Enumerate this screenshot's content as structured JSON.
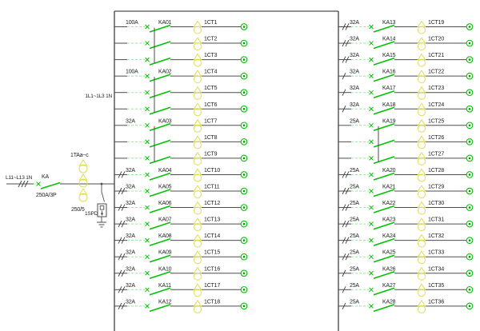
{
  "colors": {
    "wire": "#4d4d4d",
    "device_green": "#00c300",
    "pale_green": "#9fe49f",
    "coil_yellow": "#dede52",
    "terminal_dot": "#009900",
    "text": "#1c1c1c",
    "background": "#ffffff"
  },
  "incoming": {
    "line_label": "L11~L13 1N",
    "breaker_label": "KA",
    "breaker_rating": "250A/3P",
    "ct_group_label": "1TAa~c",
    "ct_ratio": "250/5",
    "spd_label": "1SPD"
  },
  "bus_label": "1L1~1L3 1N",
  "panels": [
    {
      "id": "left",
      "groups": [
        {
          "breaker": "KA01",
          "rating": "100A",
          "poles": 3,
          "slashes": 0,
          "circuits": [
            "1CT1",
            "1CT2",
            "1CT3"
          ]
        },
        {
          "breaker": "KA02",
          "rating": "100A",
          "poles": 3,
          "slashes": 0,
          "circuits": [
            "1CT4",
            "1CT5",
            "1CT6"
          ]
        },
        {
          "breaker": "KA03",
          "rating": "32A",
          "poles": 3,
          "slashes": 0,
          "circuits": [
            "1CT7",
            "1CT8",
            "1CT9"
          ]
        },
        {
          "breaker": "KA04",
          "rating": "32A",
          "poles": 1,
          "slashes": 2,
          "circuits": [
            "1CT10"
          ]
        },
        {
          "breaker": "KA05",
          "rating": "32A",
          "poles": 1,
          "slashes": 2,
          "circuits": [
            "1CT11"
          ]
        },
        {
          "breaker": "KA06",
          "rating": "32A",
          "poles": 1,
          "slashes": 2,
          "circuits": [
            "1CT12"
          ]
        },
        {
          "breaker": "KA07",
          "rating": "32A",
          "poles": 1,
          "slashes": 2,
          "circuits": [
            "1CT13"
          ]
        },
        {
          "breaker": "KA08",
          "rating": "32A",
          "poles": 1,
          "slashes": 2,
          "circuits": [
            "1CT14"
          ]
        },
        {
          "breaker": "KA09",
          "rating": "32A",
          "poles": 1,
          "slashes": 2,
          "circuits": [
            "1CT15"
          ]
        },
        {
          "breaker": "KA10",
          "rating": "32A",
          "poles": 1,
          "slashes": 2,
          "circuits": [
            "1CT16"
          ]
        },
        {
          "breaker": "KA11",
          "rating": "32A",
          "poles": 1,
          "slashes": 2,
          "circuits": [
            "1CT17"
          ]
        },
        {
          "breaker": "KA12",
          "rating": "32A",
          "poles": 1,
          "slashes": 2,
          "circuits": [
            "1CT18"
          ]
        }
      ]
    },
    {
      "id": "right",
      "groups": [
        {
          "breaker": "KA13",
          "rating": "32A",
          "poles": 1,
          "slashes": 2,
          "circuits": [
            "1CT19"
          ]
        },
        {
          "breaker": "KA14",
          "rating": "32A",
          "poles": 1,
          "slashes": 2,
          "circuits": [
            "1CT20"
          ]
        },
        {
          "breaker": "KA15",
          "rating": "32A",
          "poles": 1,
          "slashes": 2,
          "circuits": [
            "1CT21"
          ]
        },
        {
          "breaker": "KA16",
          "rating": "32A",
          "poles": 1,
          "slashes": 1,
          "circuits": [
            "1CT22"
          ]
        },
        {
          "breaker": "KA17",
          "rating": "32A",
          "poles": 1,
          "slashes": 1,
          "circuits": [
            "1CT23"
          ]
        },
        {
          "breaker": "KA18",
          "rating": "32A",
          "poles": 1,
          "slashes": 1,
          "circuits": [
            "1CT24"
          ]
        },
        {
          "breaker": "KA19",
          "rating": "25A",
          "poles": 3,
          "slashes": 0,
          "circuits": [
            "1CT25",
            "1CT26",
            "1CT27"
          ]
        },
        {
          "breaker": "KA20",
          "rating": "25A",
          "poles": 1,
          "slashes": 2,
          "circuits": [
            "1CT28"
          ]
        },
        {
          "breaker": "KA21",
          "rating": "25A",
          "poles": 1,
          "slashes": 2,
          "circuits": [
            "1CT29"
          ]
        },
        {
          "breaker": "KA22",
          "rating": "25A",
          "poles": 1,
          "slashes": 2,
          "circuits": [
            "1CT30"
          ]
        },
        {
          "breaker": "KA23",
          "rating": "25A",
          "poles": 1,
          "slashes": 2,
          "circuits": [
            "1CT31"
          ]
        },
        {
          "breaker": "KA24",
          "rating": "25A",
          "poles": 1,
          "slashes": 2,
          "circuits": [
            "1CT32"
          ]
        },
        {
          "breaker": "KA25",
          "rating": "25A",
          "poles": 1,
          "slashes": 2,
          "circuits": [
            "1CT33"
          ]
        },
        {
          "breaker": "KA26",
          "rating": "25A",
          "poles": 1,
          "slashes": 1,
          "circuits": [
            "1CT34"
          ]
        },
        {
          "breaker": "KA27",
          "rating": "25A",
          "poles": 1,
          "slashes": 1,
          "circuits": [
            "1CT35"
          ]
        },
        {
          "breaker": "KA28",
          "rating": "25A",
          "poles": 1,
          "slashes": 1,
          "circuits": [
            "1CT36"
          ]
        }
      ]
    }
  ]
}
